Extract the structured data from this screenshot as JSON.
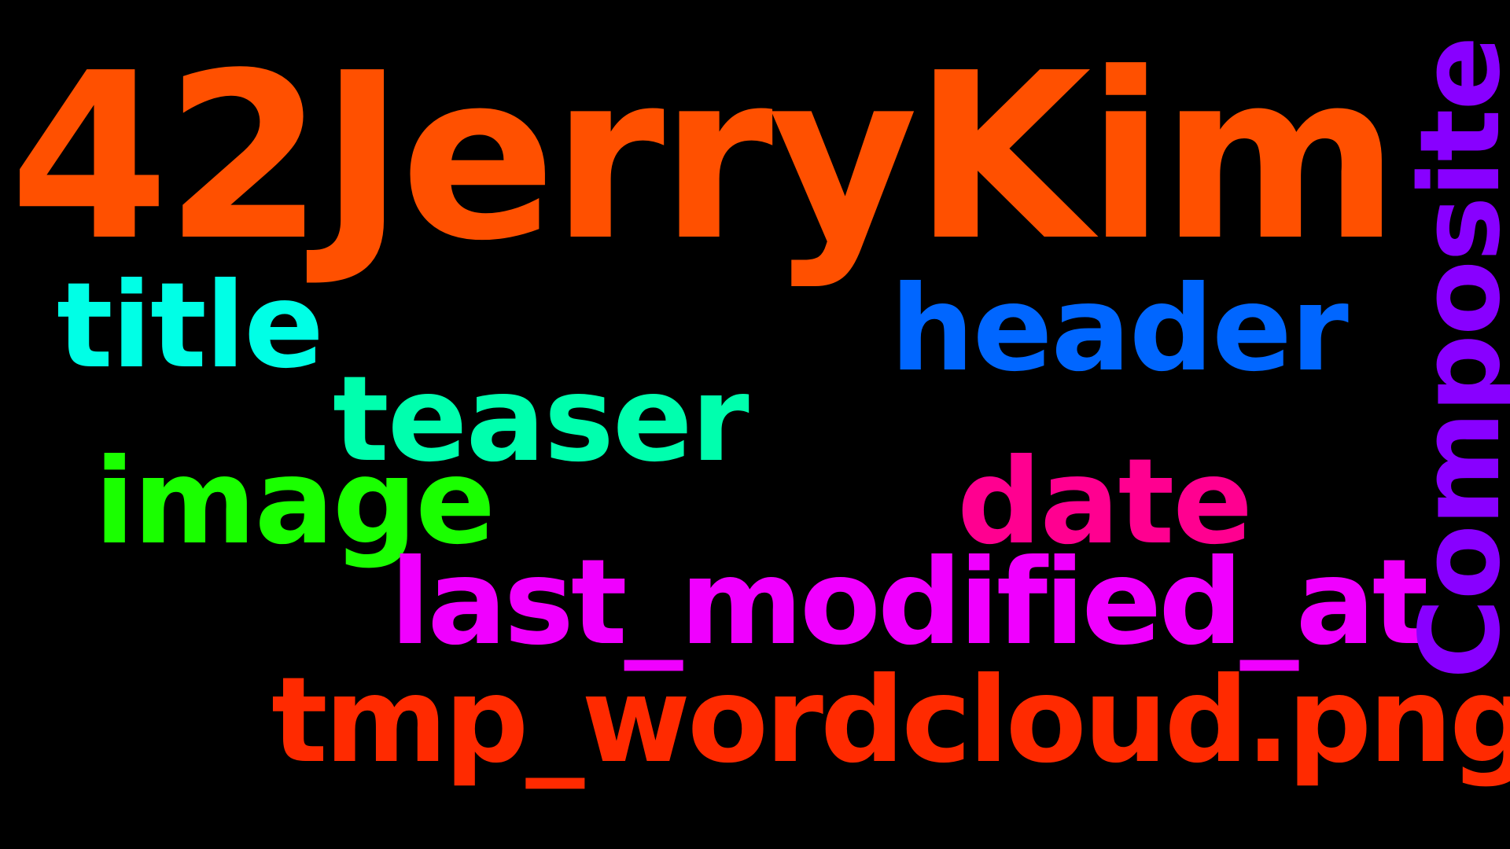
{
  "background_color": "#000000",
  "words": [
    {
      "text": "42JerryKim",
      "color": "#FF5000"
    },
    {
      "text": "title",
      "color": "#00FFE6"
    },
    {
      "text": "header",
      "color": "#0066FF"
    },
    {
      "text": "teaser",
      "color": "#00FFAE"
    },
    {
      "text": "image",
      "color": "#1AFF00"
    },
    {
      "text": "date",
      "color": "#FF0090"
    },
    {
      "text": "last_modified_at",
      "color": "#F000FF"
    },
    {
      "text": "tmp_wordcloud.png",
      "color": "#FF2A00"
    },
    {
      "text": "Composite",
      "color": "#8800FF"
    }
  ]
}
